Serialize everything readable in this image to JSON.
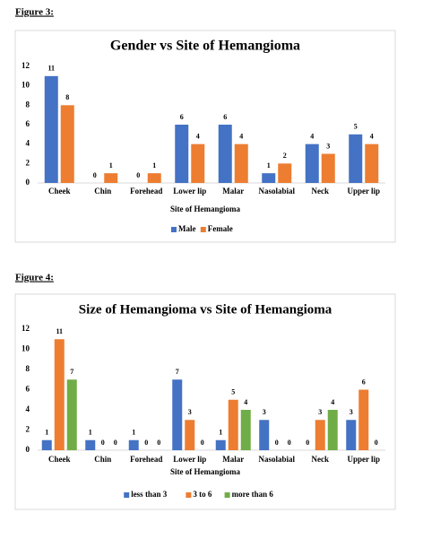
{
  "chart_data": [
    {
      "type": "bar",
      "caption": "Figure 3:",
      "title": "Gender vs Site of Hemangioma",
      "x_label": "Site of Hemangioma",
      "categories": [
        "Cheek",
        "Chin",
        "Forehead",
        "Lower lip",
        "Malar",
        "Nasolabial",
        "Neck",
        "Upper lip"
      ],
      "series": [
        {
          "name": "Male",
          "color": "#4472c4",
          "values": [
            11,
            0,
            0,
            6,
            6,
            1,
            4,
            5
          ]
        },
        {
          "name": "Female",
          "color": "#ed7d31",
          "values": [
            8,
            1,
            1,
            4,
            4,
            2,
            3,
            4
          ]
        }
      ],
      "ylim": [
        0,
        12
      ],
      "yticks": [
        0,
        2,
        4,
        6,
        8,
        10,
        12
      ],
      "grid": false,
      "legend": "bottom"
    },
    {
      "type": "bar",
      "caption": "Figure 4:",
      "title": "Size of Hemangioma vs Site of Hemangioma",
      "x_label": "Site of Hemangioma",
      "categories": [
        "Cheek",
        "Chin",
        "Forehead",
        "Lower lip",
        "Malar",
        "Nasolabial",
        "Neck",
        "Upper lip"
      ],
      "series": [
        {
          "name": "less than 3",
          "color": "#4472c4",
          "values": [
            1,
            1,
            1,
            7,
            1,
            3,
            0,
            3
          ]
        },
        {
          "name": "3 to 6",
          "color": "#ed7d31",
          "values": [
            11,
            0,
            0,
            3,
            5,
            0,
            3,
            6
          ]
        },
        {
          "name": "more than 6",
          "color": "#70ad47",
          "values": [
            7,
            0,
            0,
            0,
            4,
            0,
            4,
            0
          ]
        }
      ],
      "ylim": [
        0,
        12
      ],
      "yticks": [
        0,
        2,
        4,
        6,
        8,
        10,
        12
      ],
      "grid": false,
      "legend": "bottom"
    }
  ]
}
